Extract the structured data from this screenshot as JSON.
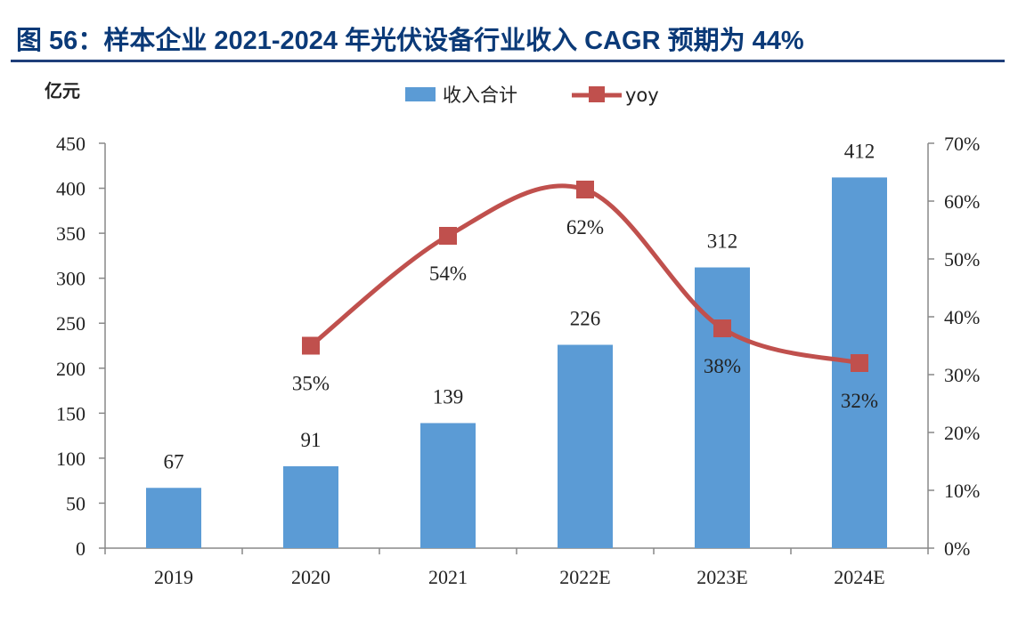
{
  "figure": {
    "title": "图 56：样本企业 2021-2024 年光伏设备行业收入 CAGR 预期为 44%"
  },
  "colors": {
    "bar": "#5b9bd5",
    "line": "#c0504d",
    "axis": "#888888",
    "title": "#0b3a78"
  },
  "chart_data": {
    "type": "bar",
    "title": "",
    "categories": [
      "2019",
      "2020",
      "2021",
      "2022E",
      "2023E",
      "2024E"
    ],
    "y_unit_label": "亿元",
    "ylim": [
      0,
      450
    ],
    "y_ticks": [
      "0",
      "50",
      "100",
      "150",
      "200",
      "250",
      "300",
      "350",
      "400",
      "450"
    ],
    "y2lim": [
      0,
      70
    ],
    "y2_ticks": [
      "0%",
      "10%",
      "20%",
      "30%",
      "40%",
      "50%",
      "60%",
      "70%"
    ],
    "grid": false,
    "legend_position": "top",
    "series": [
      {
        "name": "收入合计",
        "type": "bar",
        "axis": "left",
        "values": [
          67,
          91,
          139,
          226,
          312,
          412
        ],
        "labels": [
          "67",
          "91",
          "139",
          "226",
          "312",
          "412"
        ]
      },
      {
        "name": "yoy",
        "type": "line",
        "axis": "right",
        "values": [
          null,
          35,
          54,
          62,
          38,
          32
        ],
        "labels": [
          null,
          "35%",
          "54%",
          "62%",
          "38%",
          "32%"
        ]
      }
    ]
  }
}
